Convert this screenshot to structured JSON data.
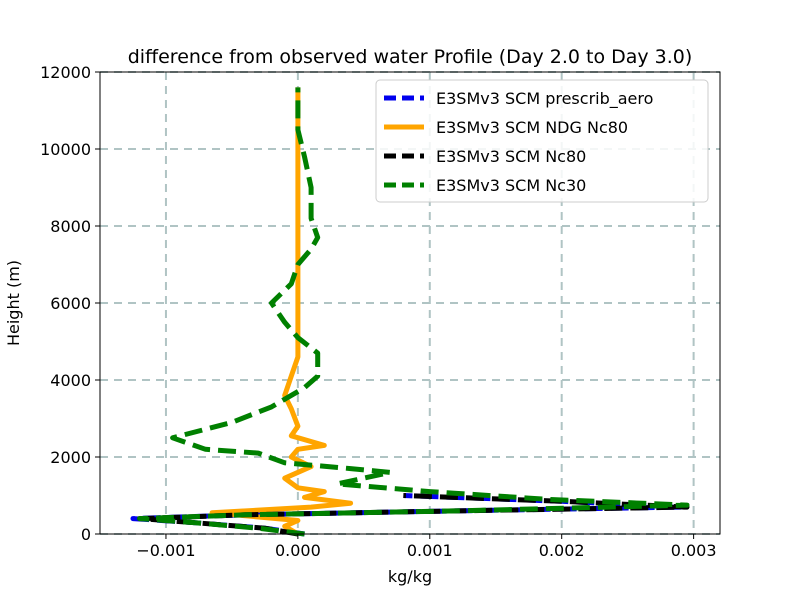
{
  "chart_data": {
    "type": "line",
    "title": "difference from observed water Profile (Day 2.0 to Day 3.0)",
    "xlabel": "kg/kg",
    "ylabel": "Height (m)",
    "xlim": [
      -0.0015,
      0.0032
    ],
    "ylim": [
      0,
      12000
    ],
    "xticks": [
      -0.001,
      0.0,
      0.001,
      0.002,
      0.003
    ],
    "xtick_labels": [
      "−0.001",
      "0.000",
      "0.001",
      "0.002",
      "0.003"
    ],
    "yticks": [
      0,
      2000,
      4000,
      6000,
      8000,
      10000,
      12000
    ],
    "ytick_labels": [
      "0",
      "2000",
      "4000",
      "6000",
      "8000",
      "10000",
      "12000"
    ],
    "grid": true,
    "legend_position": "top-right",
    "series": [
      {
        "name": "E3SMv3 SCM prescrib_aero",
        "color": "#0000ee",
        "style": "dashed",
        "x": [
          5e-05,
          -0.00025,
          -0.0008,
          -0.00125,
          -0.0004,
          0.0012,
          0.0029,
          0.002,
          0.0008
        ],
        "y": [
          0,
          150,
          300,
          400,
          500,
          600,
          700,
          850,
          1000
        ]
      },
      {
        "name": "E3SMv3 SCM NDG Nc80",
        "color": "#ffa500",
        "style": "solid",
        "x": [
          0.0,
          -0.0001,
          0.0,
          -0.00065,
          0.0001,
          0.0004,
          5e-05,
          0.0002,
          0.0,
          -0.0001,
          0.0001,
          -5e-05,
          0.0,
          0.0002,
          -5e-05,
          0.0,
          -5e-05,
          -0.0001,
          -5e-05,
          0.0,
          0.0,
          0.0,
          0.0,
          0.0,
          0.0,
          0.0,
          0.0
        ],
        "y": [
          0,
          200,
          350,
          550,
          700,
          800,
          950,
          1100,
          1200,
          1450,
          1750,
          2000,
          2200,
          2300,
          2550,
          2800,
          3250,
          3600,
          4100,
          4600,
          5200,
          6000,
          7000,
          8000,
          9000,
          10000,
          11600
        ]
      },
      {
        "name": "E3SMv3 SCM Nc80",
        "color": "#000000",
        "style": "dashed",
        "x": [
          0.0,
          -0.00025,
          -0.0008,
          -0.0012,
          -0.0004,
          0.0012,
          0.00295,
          0.002,
          0.0008
        ],
        "y": [
          0,
          150,
          300,
          400,
          500,
          600,
          700,
          850,
          1000
        ]
      },
      {
        "name": "E3SMv3 SCM Nc30",
        "color": "#008000",
        "style": "dashed",
        "x": [
          5e-05,
          -0.0003,
          -0.0008,
          -0.0012,
          -0.0004,
          0.0012,
          0.00295,
          0.0019,
          0.001,
          0.0003,
          0.0007,
          0.0004,
          -0.0001,
          -0.0003,
          -0.0007,
          -0.00095,
          -0.0005,
          -0.0002,
          5e-05,
          0.00015,
          0.00015,
          0.0,
          -0.0001,
          -0.0002,
          -5e-05,
          0.0,
          0.0001,
          0.00015,
          0.0001,
          0.0001,
          5e-05,
          0.0,
          0.0,
          0.0
        ],
        "y": [
          0,
          150,
          300,
          400,
          500,
          600,
          750,
          900,
          1100,
          1300,
          1600,
          1700,
          1850,
          2100,
          2200,
          2500,
          2900,
          3300,
          3800,
          4100,
          4700,
          5100,
          5500,
          6000,
          6500,
          7000,
          7400,
          7700,
          8200,
          9000,
          9800,
          10500,
          11000,
          11600
        ]
      }
    ]
  }
}
